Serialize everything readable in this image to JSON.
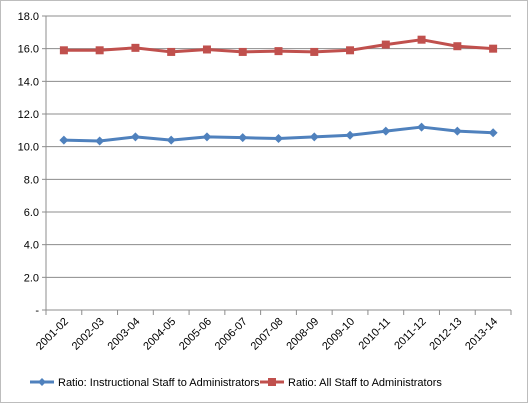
{
  "chart_data": {
    "type": "line",
    "title": "",
    "xlabel": "",
    "ylabel": "",
    "ylim": [
      0,
      18
    ],
    "y_ticks": [
      "-",
      "2.0",
      "4.0",
      "6.0",
      "8.0",
      "10.0",
      "12.0",
      "14.0",
      "16.0",
      "18.0"
    ],
    "y_tick_values": [
      0,
      2,
      4,
      6,
      8,
      10,
      12,
      14,
      16,
      18
    ],
    "grid": true,
    "legend_position": "bottom",
    "categories": [
      "2001-02",
      "2002-03",
      "2003-04",
      "2004-05",
      "2005-06",
      "2006-07",
      "2007-08",
      "2008-09",
      "2009-10",
      "2010-11",
      "2011-12",
      "2012-13",
      "2013-14"
    ],
    "series": [
      {
        "name": "Ratio: Instructional Staff to Administrators",
        "color": "#4f81bd",
        "marker": "diamond",
        "values": [
          10.4,
          10.35,
          10.6,
          10.4,
          10.6,
          10.55,
          10.5,
          10.6,
          10.7,
          10.95,
          11.2,
          10.95,
          10.85
        ]
      },
      {
        "name": "Ratio: All Staff to Administrators",
        "color": "#c0504d",
        "marker": "square",
        "values": [
          15.9,
          15.9,
          16.05,
          15.8,
          15.95,
          15.8,
          15.85,
          15.8,
          15.9,
          16.25,
          16.55,
          16.15,
          16.0
        ]
      }
    ]
  }
}
